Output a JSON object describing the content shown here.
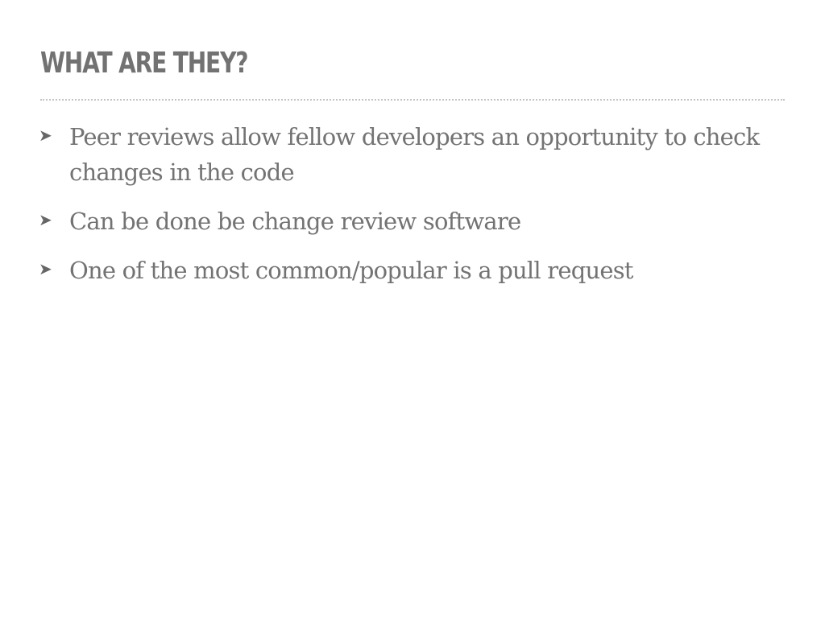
{
  "slide": {
    "title": "WHAT ARE THEY?",
    "bullets": [
      {
        "icon": "arrowhead-icon",
        "text": "Peer reviews allow fellow developers an opportunity to check changes in the code"
      },
      {
        "icon": "arrowhead-icon",
        "text": "Can be done be change review software"
      },
      {
        "icon": "arrowhead-icon",
        "text": "One of the most common/popular is a pull request"
      }
    ]
  }
}
